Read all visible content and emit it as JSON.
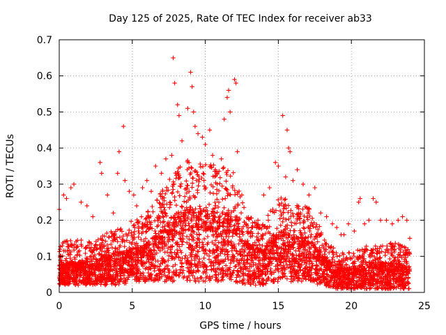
{
  "chart_data": {
    "type": "scatter",
    "title": "Day 125 of 2025, Rate Of TEC Index for receiver ab33",
    "xlabel": "GPS time / hours",
    "ylabel": "ROTI / TECUs",
    "xlim": [
      0,
      25
    ],
    "ylim": [
      0,
      0.7
    ],
    "xticks": [
      0,
      5,
      10,
      15,
      20,
      25
    ],
    "yticks": [
      0,
      0.1,
      0.2,
      0.3,
      0.4,
      0.5,
      0.6,
      0.7
    ],
    "xtick_labels": [
      "0",
      "5",
      "10",
      "15",
      "20",
      "25"
    ],
    "ytick_labels": [
      "0",
      "0.1",
      "0.2",
      "0.3",
      "0.4",
      "0.5",
      "0.6",
      "0.7"
    ],
    "grid": true,
    "marker": "+",
    "color": "#ff0000",
    "series": [
      {
        "points": [
          [
            0.0,
            0.23
          ],
          [
            0.3,
            0.27
          ],
          [
            0.5,
            0.26
          ],
          [
            0.8,
            0.29
          ],
          [
            1.0,
            0.3
          ],
          [
            1.5,
            0.25
          ],
          [
            1.9,
            0.24
          ],
          [
            2.3,
            0.21
          ],
          [
            2.8,
            0.36
          ],
          [
            2.9,
            0.33
          ],
          [
            3.3,
            0.27
          ],
          [
            3.7,
            0.22
          ],
          [
            4.0,
            0.33
          ],
          [
            4.1,
            0.39
          ],
          [
            4.4,
            0.46
          ],
          [
            4.5,
            0.31
          ],
          [
            4.8,
            0.28
          ],
          [
            5.1,
            0.27
          ],
          [
            5.3,
            0.24
          ],
          [
            5.7,
            0.29
          ],
          [
            6.0,
            0.31
          ],
          [
            6.3,
            0.28
          ],
          [
            6.6,
            0.35
          ],
          [
            7.0,
            0.33
          ],
          [
            7.3,
            0.37
          ],
          [
            7.7,
            0.38
          ],
          [
            7.8,
            0.65
          ],
          [
            7.9,
            0.58
          ],
          [
            8.1,
            0.52
          ],
          [
            8.2,
            0.49
          ],
          [
            8.4,
            0.42
          ],
          [
            8.8,
            0.51
          ],
          [
            9.0,
            0.61
          ],
          [
            9.1,
            0.57
          ],
          [
            9.2,
            0.5
          ],
          [
            9.3,
            0.46
          ],
          [
            9.5,
            0.44
          ],
          [
            9.8,
            0.43
          ],
          [
            10.0,
            0.41
          ],
          [
            10.3,
            0.45
          ],
          [
            10.5,
            0.38
          ],
          [
            10.8,
            0.33
          ],
          [
            11.1,
            0.37
          ],
          [
            11.3,
            0.48
          ],
          [
            11.5,
            0.54
          ],
          [
            11.6,
            0.56
          ],
          [
            11.7,
            0.5
          ],
          [
            12.0,
            0.59
          ],
          [
            12.1,
            0.58
          ],
          [
            12.2,
            0.39
          ],
          [
            12.5,
            0.27
          ],
          [
            12.8,
            0.19
          ],
          [
            13.2,
            0.18
          ],
          [
            13.6,
            0.2
          ],
          [
            14.0,
            0.27
          ],
          [
            14.4,
            0.29
          ],
          [
            14.8,
            0.36
          ],
          [
            15.0,
            0.35
          ],
          [
            15.3,
            0.49
          ],
          [
            15.5,
            0.32
          ],
          [
            15.6,
            0.45
          ],
          [
            15.7,
            0.4
          ],
          [
            15.8,
            0.39
          ],
          [
            16.0,
            0.31
          ],
          [
            16.3,
            0.34
          ],
          [
            16.7,
            0.3
          ],
          [
            17.1,
            0.27
          ],
          [
            17.5,
            0.29
          ],
          [
            17.9,
            0.22
          ],
          [
            18.3,
            0.21
          ],
          [
            18.7,
            0.19
          ],
          [
            19.0,
            0.18
          ],
          [
            19.3,
            0.16
          ],
          [
            19.5,
            0.16
          ],
          [
            19.8,
            0.19
          ],
          [
            20.2,
            0.17
          ],
          [
            20.5,
            0.25
          ],
          [
            20.6,
            0.26
          ],
          [
            20.9,
            0.19
          ],
          [
            21.2,
            0.2
          ],
          [
            21.5,
            0.26
          ],
          [
            21.7,
            0.25
          ],
          [
            22.0,
            0.2
          ],
          [
            22.4,
            0.2
          ],
          [
            22.8,
            0.19
          ],
          [
            23.2,
            0.2
          ],
          [
            23.5,
            0.21
          ],
          [
            23.8,
            0.2
          ],
          [
            24.0,
            0.15
          ]
        ],
        "density_envelope": {
          "x": [
            0,
            1,
            2,
            3,
            4,
            5,
            6,
            7,
            8,
            9,
            10,
            11,
            12,
            13,
            14,
            15,
            16,
            17,
            18,
            19,
            20,
            21,
            22,
            23,
            24
          ],
          "typical_y": [
            0.06,
            0.06,
            0.06,
            0.07,
            0.08,
            0.09,
            0.1,
            0.13,
            0.17,
            0.18,
            0.17,
            0.17,
            0.16,
            0.1,
            0.09,
            0.13,
            0.12,
            0.11,
            0.08,
            0.05,
            0.05,
            0.06,
            0.06,
            0.06,
            0.05
          ],
          "spread_y": [
            0.08,
            0.09,
            0.08,
            0.09,
            0.1,
            0.11,
            0.12,
            0.15,
            0.18,
            0.19,
            0.19,
            0.19,
            0.17,
            0.11,
            0.1,
            0.14,
            0.13,
            0.13,
            0.09,
            0.06,
            0.06,
            0.07,
            0.07,
            0.08,
            0.07
          ],
          "floor_y": [
            0.02,
            0.02,
            0.02,
            0.02,
            0.02,
            0.03,
            0.03,
            0.03,
            0.03,
            0.03,
            0.03,
            0.03,
            0.03,
            0.02,
            0.02,
            0.03,
            0.03,
            0.03,
            0.02,
            0.01,
            0.01,
            0.01,
            0.01,
            0.01,
            0.01
          ]
        }
      }
    ]
  }
}
